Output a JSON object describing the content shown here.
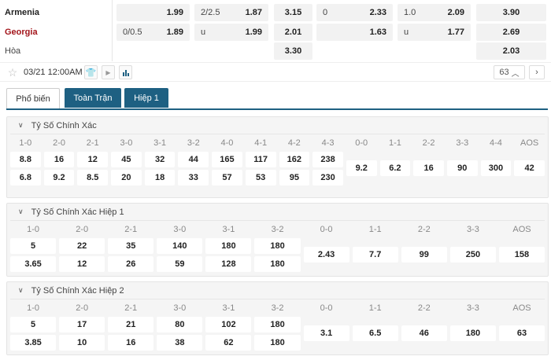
{
  "match": {
    "teams": [
      {
        "name": "Armenia",
        "color": "#222222"
      },
      {
        "name": "Georgia",
        "color": "#a3151b"
      },
      {
        "name": "Hòa"
      }
    ],
    "rows": [
      [
        [
          "",
          "1.99"
        ],
        [
          "2/2.5",
          "1.87"
        ],
        [
          "",
          "3.15"
        ],
        [
          "0",
          "2.33"
        ],
        [
          "1.0",
          "2.09"
        ],
        [
          "",
          "3.90"
        ]
      ],
      [
        [
          "0/0.5",
          "1.89"
        ],
        [
          "u",
          "1.99"
        ],
        [
          "",
          "2.01"
        ],
        [
          "",
          "1.63"
        ],
        [
          "u",
          "1.77"
        ],
        [
          "",
          "2.69"
        ]
      ],
      [
        null,
        null,
        [
          "",
          "3.30"
        ],
        null,
        null,
        [
          "",
          "2.03"
        ]
      ]
    ],
    "datetime": "03/21 12:00AM",
    "count": "63",
    "icons": [
      "star-icon",
      "jersey-icon",
      "play-icon",
      "stats-icon",
      "chevron-up-icon",
      "chevron-right-icon"
    ]
  },
  "tabs": [
    {
      "label": "Phổ biến",
      "active": true
    },
    {
      "label": "Toàn Trận"
    },
    {
      "label": "Hiệp 1"
    }
  ],
  "accent": "#1e6082",
  "sections": [
    {
      "title": "Tỷ Số Chính Xác",
      "cols": [
        [
          "1-0",
          "8.8",
          "6.8"
        ],
        [
          "2-0",
          "16",
          "9.2"
        ],
        [
          "2-1",
          "12",
          "8.5"
        ],
        [
          "3-0",
          "45",
          "20"
        ],
        [
          "3-1",
          "32",
          "18"
        ],
        [
          "3-2",
          "44",
          "33"
        ],
        [
          "4-0",
          "165",
          "57"
        ],
        [
          "4-1",
          "117",
          "53"
        ],
        [
          "4-2",
          "162",
          "95"
        ],
        [
          "4-3",
          "238",
          "230"
        ],
        [
          "0-0",
          "9.2"
        ],
        [
          "1-1",
          "6.2"
        ],
        [
          "2-2",
          "16"
        ],
        [
          "3-3",
          "90"
        ],
        [
          "4-4",
          "300"
        ],
        [
          "AOS",
          "42"
        ]
      ]
    },
    {
      "title": "Tỷ Số Chính Xác Hiệp 1",
      "cols": [
        [
          "1-0",
          "5",
          "3.65"
        ],
        [
          "2-0",
          "22",
          "12"
        ],
        [
          "2-1",
          "35",
          "26"
        ],
        [
          "3-0",
          "140",
          "59"
        ],
        [
          "3-1",
          "180",
          "128"
        ],
        [
          "3-2",
          "180",
          "180"
        ],
        [
          "0-0",
          "2.43"
        ],
        [
          "1-1",
          "7.7"
        ],
        [
          "2-2",
          "99"
        ],
        [
          "3-3",
          "250"
        ],
        [
          "AOS",
          "158"
        ]
      ]
    },
    {
      "title": "Tỷ Số Chính Xác Hiệp 2",
      "cols": [
        [
          "1-0",
          "5",
          "3.85"
        ],
        [
          "2-0",
          "17",
          "10"
        ],
        [
          "2-1",
          "21",
          "16"
        ],
        [
          "3-0",
          "80",
          "38"
        ],
        [
          "3-1",
          "102",
          "62"
        ],
        [
          "3-2",
          "180",
          "180"
        ],
        [
          "0-0",
          "3.1"
        ],
        [
          "1-1",
          "6.5"
        ],
        [
          "2-2",
          "46"
        ],
        [
          "3-3",
          "180"
        ],
        [
          "AOS",
          "63"
        ]
      ]
    }
  ]
}
